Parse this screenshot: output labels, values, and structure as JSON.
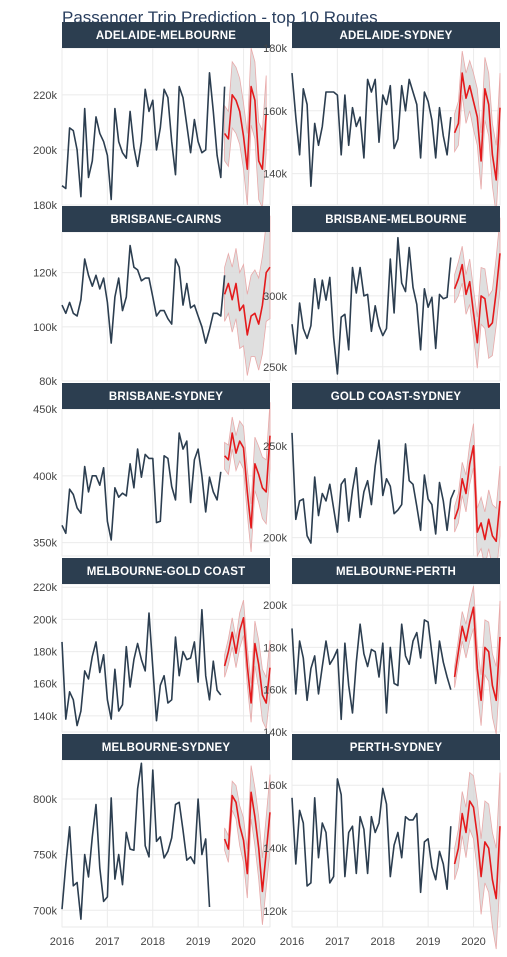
{
  "figure": {
    "title": "Passenger Trip Prediction - top 10 Routes"
  },
  "colors": {
    "history": "#2c3e50",
    "forecast": "#e41a1c",
    "band": "#d9d9d9",
    "band_edge": "#e8a9a9",
    "strip": "#2c3e50",
    "grid": "#ebebeb"
  },
  "chart_data": {
    "type": "line",
    "x_axis": {
      "ticks": [
        "2016",
        "2017",
        "2018",
        "2019",
        "2020"
      ],
      "range": [
        "2016-01",
        "2020-08"
      ]
    },
    "history_start": "2016-01",
    "forecast_start": "2019-08",
    "panels": [
      {
        "name": "ADELAIDE-MELBOURNE",
        "ylim": [
          180000,
          237000
        ],
        "y_ticks": [
          180000,
          200000,
          220000
        ],
        "y_tick_labels": [
          "180k",
          "200k",
          "220k"
        ],
        "history": [
          187000,
          186000,
          208000,
          207000,
          200000,
          183000,
          215000,
          190000,
          196000,
          212000,
          206000,
          203000,
          198000,
          182000,
          215000,
          203000,
          199000,
          197000,
          214000,
          201000,
          194000,
          203000,
          222000,
          214000,
          218000,
          200000,
          208000,
          222000,
          219000,
          203000,
          191000,
          223000,
          219000,
          209000,
          199000,
          211000,
          203000,
          199000,
          200000,
          228000,
          214000,
          198000,
          190000,
          223000
        ],
        "forecast": [
          206000,
          204000,
          220000,
          218000,
          214000,
          205000,
          193000,
          223000,
          218000,
          196000,
          193000,
          213000
        ],
        "lower": [
          196000,
          194000,
          208000,
          206000,
          202000,
          193000,
          180000,
          209000,
          204000,
          182000,
          179000,
          199000
        ],
        "upper": [
          216000,
          214000,
          232000,
          230000,
          226000,
          217000,
          206000,
          237000,
          232000,
          210000,
          207000,
          227000
        ]
      },
      {
        "name": "ADELAIDE-SYDNEY",
        "ylim": [
          130000,
          180000
        ],
        "y_ticks": [
          140000,
          160000,
          180000
        ],
        "y_tick_labels": [
          "140k",
          "160k",
          "180k"
        ],
        "history": [
          172000,
          158000,
          146000,
          167000,
          162000,
          136000,
          156000,
          149000,
          155000,
          166000,
          166000,
          166000,
          165000,
          146000,
          165000,
          149000,
          161000,
          155000,
          158000,
          145000,
          170000,
          166000,
          170000,
          150000,
          165000,
          162000,
          168000,
          148000,
          151000,
          168000,
          160000,
          170000,
          166000,
          162000,
          145000,
          166000,
          163000,
          157000,
          145000,
          161000,
          152000,
          146000,
          158000
        ],
        "forecast": [
          153000,
          156000,
          172000,
          164000,
          168000,
          163000,
          158000,
          144000,
          167000,
          162000,
          146000,
          138000,
          161000
        ],
        "lower": [
          147000,
          149000,
          165000,
          156000,
          160000,
          154000,
          149000,
          135000,
          157000,
          152000,
          136000,
          127000,
          150000
        ],
        "upper": [
          159000,
          163000,
          179000,
          172000,
          176000,
          172000,
          167000,
          153000,
          177000,
          172000,
          156000,
          149000,
          172000
        ]
      },
      {
        "name": "BRISBANE-CAIRNS",
        "ylim": [
          80000,
          135000
        ],
        "y_ticks": [
          80000,
          100000,
          120000
        ],
        "y_tick_labels": [
          "80k",
          "100k",
          "120k"
        ],
        "history": [
          108000,
          105000,
          109000,
          105000,
          104000,
          110000,
          125000,
          119000,
          115000,
          119000,
          114000,
          118000,
          109000,
          94000,
          111000,
          118000,
          106000,
          111000,
          130000,
          122000,
          121000,
          117000,
          118000,
          118000,
          111000,
          104000,
          106000,
          106000,
          103000,
          101000,
          125000,
          122000,
          108000,
          116000,
          107000,
          108000,
          104000,
          100000,
          94000,
          99000,
          105000,
          105000,
          104000,
          119000
        ],
        "forecast": [
          112000,
          116000,
          110000,
          116000,
          106000,
          108000,
          97000,
          104000,
          105000,
          101000,
          108000,
          120000,
          122000
        ],
        "lower": [
          102000,
          105000,
          98000,
          103000,
          92000,
          93000,
          82000,
          89000,
          89000,
          84000,
          90000,
          102000,
          103000
        ],
        "upper": [
          122000,
          127000,
          122000,
          129000,
          120000,
          123000,
          112000,
          119000,
          121000,
          118000,
          126000,
          138000,
          141000
        ]
      },
      {
        "name": "BRISBANE-MELBOURNE",
        "ylim": [
          240000,
          345000
        ],
        "y_ticks": [
          250000,
          300000
        ],
        "y_tick_labels": [
          "250k",
          "300k"
        ],
        "history": [
          280000,
          259000,
          295000,
          277000,
          270000,
          279000,
          312000,
          291000,
          311000,
          297000,
          313000,
          271000,
          245000,
          285000,
          287000,
          262000,
          320000,
          302000,
          320000,
          300000,
          301000,
          275000,
          293000,
          279000,
          272000,
          277000,
          326000,
          288000,
          341000,
          309000,
          303000,
          334000,
          306000,
          294000,
          262000,
          305000,
          292000,
          299000,
          263000,
          301000,
          298000,
          299000,
          327000
        ],
        "forecast": [
          305000,
          312000,
          322000,
          301000,
          310000,
          288000,
          267000,
          300000,
          298000,
          278000,
          281000,
          303000,
          330000
        ],
        "lower": [
          295000,
          300000,
          309000,
          287000,
          294000,
          271000,
          249000,
          280000,
          277000,
          256000,
          258000,
          279000,
          305000
        ],
        "upper": [
          315000,
          324000,
          335000,
          315000,
          326000,
          305000,
          285000,
          320000,
          319000,
          300000,
          304000,
          327000,
          355000
        ]
      },
      {
        "name": "BRISBANE-SYDNEY",
        "ylim": [
          340000,
          450000
        ],
        "y_ticks": [
          350000,
          400000,
          450000
        ],
        "y_tick_labels": [
          "350k",
          "400k",
          "450k"
        ],
        "history": [
          363000,
          357000,
          390000,
          386000,
          376000,
          372000,
          407000,
          388000,
          400000,
          400000,
          393000,
          406000,
          366000,
          352000,
          391000,
          384000,
          387000,
          385000,
          409000,
          391000,
          420000,
          399000,
          416000,
          413000,
          413000,
          365000,
          366000,
          415000,
          413000,
          392000,
          382000,
          432000,
          420000,
          426000,
          380000,
          412000,
          420000,
          400000,
          373000,
          399000,
          388000,
          382000,
          403000
        ],
        "forecast": [
          415000,
          412000,
          432000,
          417000,
          426000,
          421000,
          388000,
          361000,
          409000,
          401000,
          391000,
          388000,
          430000
        ],
        "lower": [
          405000,
          401000,
          420000,
          404000,
          411000,
          405000,
          371000,
          343000,
          389000,
          380000,
          368000,
          364000,
          405000
        ],
        "upper": [
          425000,
          423000,
          444000,
          430000,
          441000,
          437000,
          405000,
          379000,
          429000,
          422000,
          414000,
          412000,
          455000
        ]
      },
      {
        "name": "GOLD COAST-SYDNEY",
        "ylim": [
          190000,
          270000
        ],
        "y_ticks": [
          200000,
          250000
        ],
        "y_tick_labels": [
          "200k",
          "250k"
        ],
        "history": [
          257000,
          210000,
          220000,
          221000,
          201000,
          197000,
          233000,
          212000,
          224000,
          220000,
          229000,
          216000,
          203000,
          229000,
          232000,
          209000,
          226000,
          238000,
          211000,
          225000,
          231000,
          218000,
          239000,
          253000,
          223000,
          232000,
          228000,
          213000,
          215000,
          218000,
          251000,
          231000,
          229000,
          217000,
          204000,
          234000,
          221000,
          218000,
          202000,
          230000,
          220000,
          204000,
          221000,
          226000
        ],
        "forecast": [
          210000,
          216000,
          232000,
          224000,
          240000,
          250000,
          203000,
          208000,
          199000,
          210000,
          201000,
          198000,
          220000
        ],
        "lower": [
          203000,
          208000,
          223000,
          214000,
          229000,
          238000,
          190000,
          194000,
          184000,
          194000,
          184000,
          180000,
          201000
        ],
        "upper": [
          217000,
          224000,
          241000,
          234000,
          251000,
          262000,
          216000,
          222000,
          214000,
          226000,
          218000,
          216000,
          239000
        ]
      },
      {
        "name": "MELBOURNE-GOLD COAST",
        "ylim": [
          130000,
          222000
        ],
        "y_ticks": [
          140000,
          160000,
          180000,
          200000,
          220000
        ],
        "y_tick_labels": [
          "140k",
          "160k",
          "180k",
          "200k",
          "220k"
        ],
        "history": [
          186000,
          138000,
          155000,
          150000,
          134000,
          143000,
          168000,
          163000,
          177000,
          186000,
          167000,
          178000,
          150000,
          138000,
          169000,
          143000,
          147000,
          183000,
          158000,
          175000,
          185000,
          175000,
          168000,
          204000,
          170000,
          137000,
          159000,
          165000,
          148000,
          150000,
          189000,
          165000,
          180000,
          175000,
          176000,
          186000,
          161000,
          206000,
          165000,
          150000,
          174000,
          156000,
          153000
        ],
        "forecast": [
          171000,
          180000,
          192000,
          179000,
          193000,
          201000,
          171000,
          148000,
          185000,
          172000,
          153000,
          148000,
          170000
        ],
        "lower": [
          164000,
          172000,
          183000,
          170000,
          182000,
          190000,
          159000,
          136000,
          171000,
          157000,
          137000,
          132000,
          153000
        ],
        "upper": [
          178000,
          188000,
          201000,
          188000,
          204000,
          212000,
          183000,
          160000,
          199000,
          187000,
          169000,
          164000,
          187000
        ]
      },
      {
        "name": "MELBOURNE-PERTH",
        "ylim": [
          140000,
          210000
        ],
        "y_ticks": [
          140000,
          160000,
          180000,
          200000
        ],
        "y_tick_labels": [
          "140k",
          "160k",
          "180k",
          "200k"
        ],
        "history": [
          189000,
          158000,
          183000,
          175000,
          155000,
          170000,
          176000,
          158000,
          171000,
          183000,
          172000,
          175000,
          179000,
          146000,
          182000,
          162000,
          149000,
          173000,
          191000,
          177000,
          171000,
          179000,
          178000,
          166000,
          182000,
          149000,
          180000,
          163000,
          162000,
          191000,
          176000,
          172000,
          183000,
          187000,
          175000,
          193000,
          192000,
          177000,
          163000,
          183000,
          173000,
          166000,
          160000
        ],
        "forecast": [
          166000,
          178000,
          190000,
          183000,
          192000,
          199000,
          170000,
          155000,
          180000,
          178000,
          162000,
          155000,
          185000
        ],
        "lower": [
          161000,
          172000,
          183000,
          175000,
          183000,
          189000,
          159000,
          143000,
          167000,
          164000,
          147000,
          139000,
          168000
        ],
        "upper": [
          171000,
          184000,
          197000,
          191000,
          201000,
          209000,
          181000,
          167000,
          193000,
          192000,
          177000,
          171000,
          202000
        ]
      },
      {
        "name": "MELBOURNE-SYDNEY",
        "ylim": [
          685000,
          835000
        ],
        "y_ticks": [
          700000,
          750000,
          800000
        ],
        "y_tick_labels": [
          "700k",
          "750k",
          "800k"
        ],
        "history": [
          701000,
          741000,
          775000,
          722000,
          725000,
          692000,
          750000,
          730000,
          766000,
          795000,
          738000,
          708000,
          712000,
          801000,
          728000,
          750000,
          723000,
          770000,
          755000,
          754000,
          809000,
          832000,
          758000,
          748000,
          826000,
          762000,
          766000,
          747000,
          753000,
          765000,
          795000,
          797000,
          772000,
          745000,
          748000,
          742000,
          800000,
          750000,
          764000,
          703000
        ],
        "forecast": [
          764000,
          755000,
          803000,
          797000,
          776000,
          763000,
          733000,
          806000,
          784000,
          756000,
          717000,
          752000,
          788000
        ],
        "lower": [
          754000,
          743000,
          790000,
          782000,
          758000,
          743000,
          711000,
          782000,
          758000,
          728000,
          687000,
          720000,
          754000
        ],
        "upper": [
          774000,
          767000,
          816000,
          812000,
          794000,
          783000,
          755000,
          830000,
          810000,
          784000,
          747000,
          784000,
          822000
        ]
      },
      {
        "name": "PERTH-SYDNEY",
        "ylim": [
          115000,
          168000
        ],
        "y_ticks": [
          120000,
          140000,
          160000
        ],
        "y_tick_labels": [
          "120k",
          "140k",
          "160k"
        ],
        "history": [
          156000,
          135000,
          152000,
          148000,
          128000,
          129000,
          156000,
          137000,
          148000,
          145000,
          129000,
          131000,
          162000,
          157000,
          131000,
          145000,
          147000,
          132000,
          150000,
          146000,
          132000,
          150000,
          145000,
          148000,
          159000,
          154000,
          131000,
          141000,
          145000,
          137000,
          150000,
          149000,
          149000,
          151000,
          126000,
          142000,
          143000,
          134000,
          130000,
          139000,
          135000,
          127000,
          147000
        ],
        "forecast": [
          135000,
          140000,
          151000,
          145000,
          155000,
          153000,
          144000,
          131000,
          142000,
          140000,
          130000,
          124000,
          147000
        ],
        "lower": [
          130000,
          134000,
          144000,
          137000,
          146000,
          143000,
          133000,
          119000,
          129000,
          126000,
          115000,
          108000,
          130000
        ],
        "upper": [
          140000,
          146000,
          158000,
          153000,
          164000,
          163000,
          155000,
          143000,
          155000,
          154000,
          145000,
          140000,
          164000
        ]
      }
    ]
  }
}
